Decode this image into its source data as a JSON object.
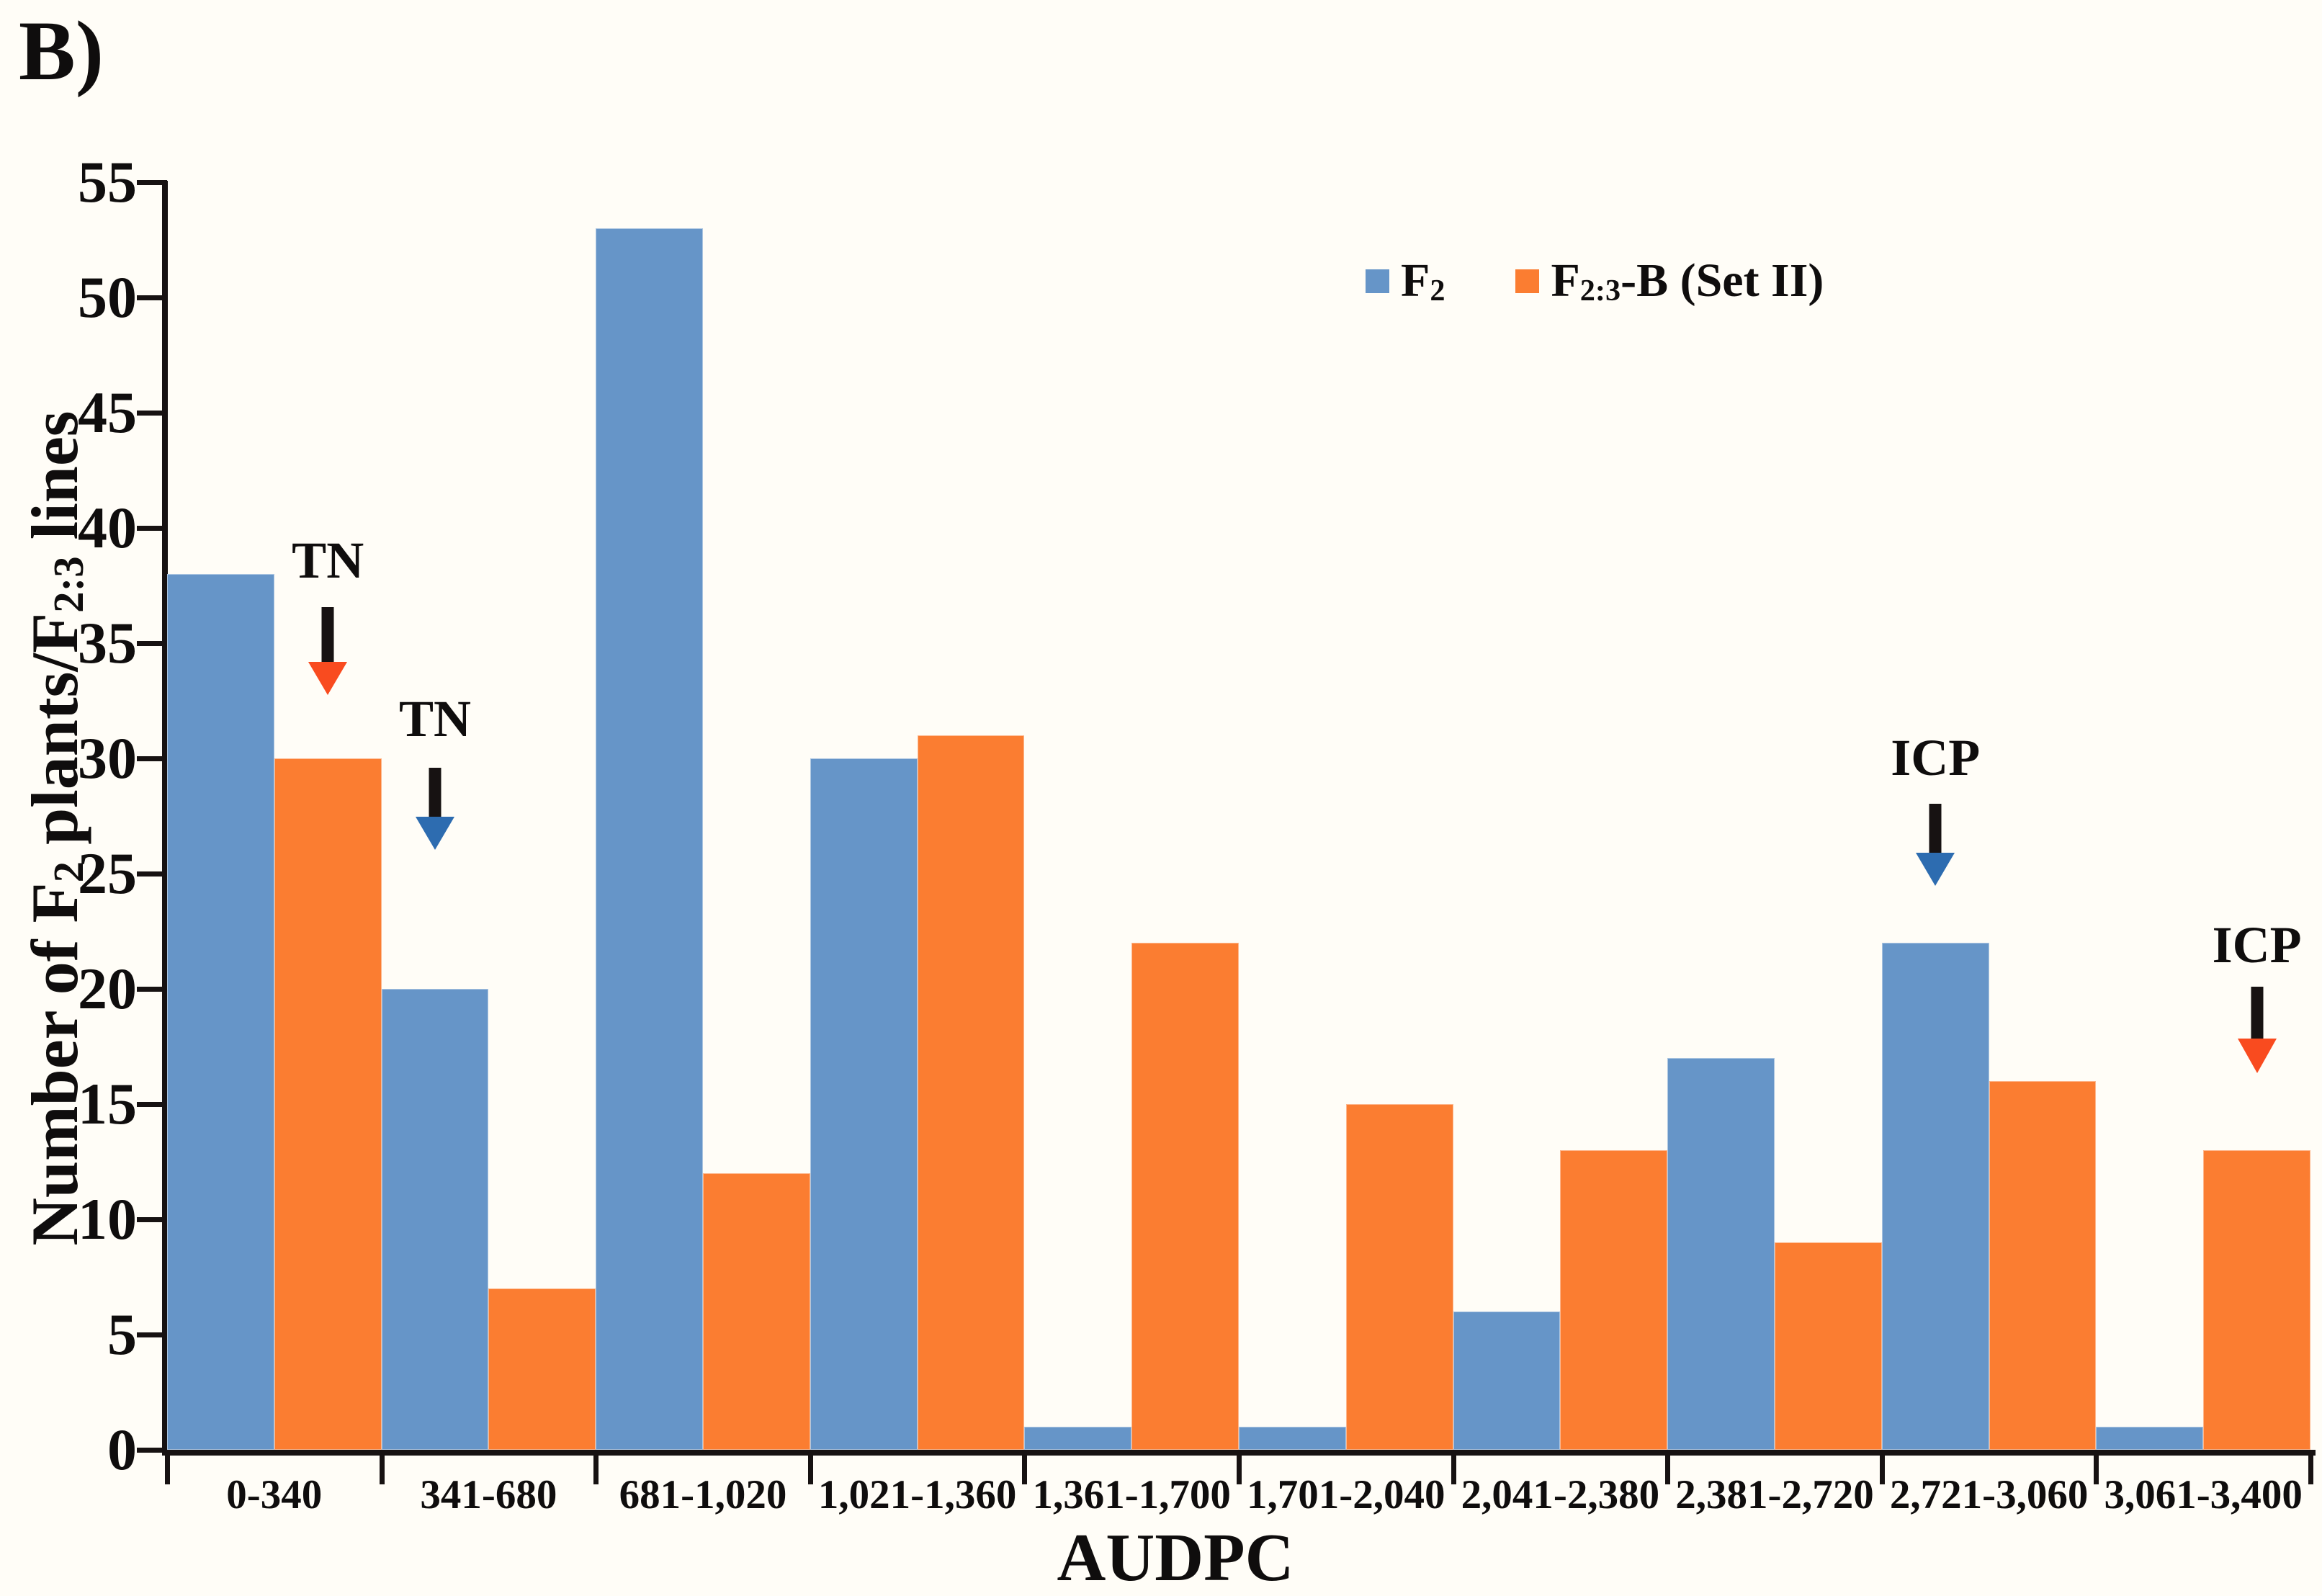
{
  "panel_label": "B)",
  "colors": {
    "background": "#FFFDF7",
    "f2_bar": "#6695C8",
    "f23_bar": "#FB7D31",
    "arrow_blue_head": "#2D6CB0",
    "arrow_red_head": "#F94B1F",
    "axis_black": "#171212"
  },
  "y_axis": {
    "title_parts": {
      "p1": "Number of F",
      "s1": "2",
      "p2": " plants/F",
      "s2": "2:3",
      "p3": " lines"
    },
    "tick_labels": [
      "0",
      "5",
      "10",
      "15",
      "20",
      "25",
      "30",
      "35",
      "40",
      "45",
      "50",
      "55"
    ],
    "min": 0,
    "max": 55,
    "step": 5
  },
  "x_axis": {
    "title": "AUDPC",
    "categories": [
      "0-340",
      "341-680",
      "681-1,020",
      "1,021-1,360",
      "1,361-1,700",
      "1,701-2,040",
      "2,041-2,380",
      "2,381-2,720",
      "2,721-3,060",
      "3,061-3,400"
    ]
  },
  "legend": {
    "items": [
      {
        "pre": "F",
        "sub": "2",
        "post": ""
      },
      {
        "pre": "F",
        "sub": "2:3",
        "post": "-B (Set II)"
      }
    ]
  },
  "annotations": [
    {
      "label": "TN",
      "head": "red"
    },
    {
      "label": "TN",
      "head": "blue"
    },
    {
      "label": "ICP",
      "head": "blue"
    },
    {
      "label": "ICP",
      "head": "red"
    }
  ],
  "chart_data": {
    "type": "bar",
    "title": "",
    "xlabel": "AUDPC",
    "ylabel": "Number of F2 plants/F2:3 lines",
    "ylim": [
      0,
      55
    ],
    "ytick_step": 5,
    "grid": false,
    "legend_position": "top-right",
    "categories": [
      "0-340",
      "341-680",
      "681-1,020",
      "1,021-1,360",
      "1,361-1,700",
      "1,701-2,040",
      "2,041-2,380",
      "2,381-2,720",
      "2,721-3,060",
      "3,061-3,400"
    ],
    "series": [
      {
        "name": "F2",
        "color": "#6695C8",
        "values": [
          38,
          20,
          53,
          30,
          1,
          1,
          6,
          17,
          22,
          1
        ]
      },
      {
        "name": "F2:3-B (Set II)",
        "color": "#FB7D31",
        "values": [
          30,
          7,
          12,
          31,
          22,
          15,
          13,
          9,
          16,
          13
        ]
      }
    ],
    "annotations": [
      {
        "label": "TN",
        "arrow_color": "red-orange",
        "target": "F2:3 bar of 0-340"
      },
      {
        "label": "TN",
        "arrow_color": "blue",
        "target": "F2 bar of 341-680"
      },
      {
        "label": "ICP",
        "arrow_color": "blue",
        "target": "F2 bar of 2,721-3,060"
      },
      {
        "label": "ICP",
        "arrow_color": "red-orange",
        "target": "F2:3 bar of 3,061-3,400"
      }
    ]
  }
}
